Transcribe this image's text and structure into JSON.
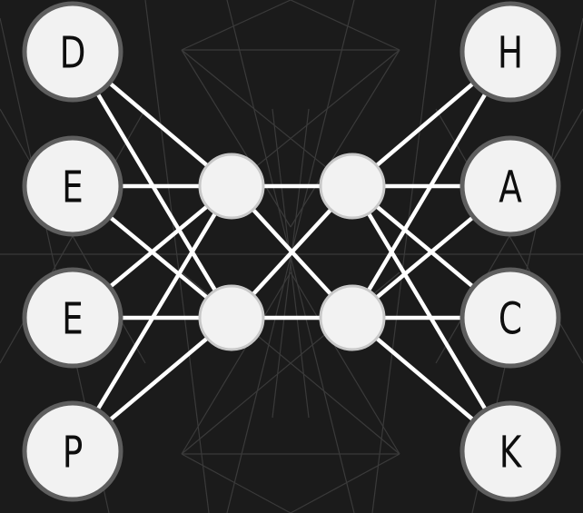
{
  "diagram": {
    "type": "neural-network",
    "colors": {
      "background": "#1b1b1b",
      "edge": "#ffffff",
      "node_fill": "#f2f2f2",
      "node_border": "#5e5e5e",
      "hidden_border": "#c8c8c8",
      "pattern": "#3a3a3a"
    },
    "input_nodes": [
      {
        "id": "in-0",
        "label": "D"
      },
      {
        "id": "in-1",
        "label": "E"
      },
      {
        "id": "in-2",
        "label": "E"
      },
      {
        "id": "in-3",
        "label": "P"
      }
    ],
    "hidden_layer_1": [
      {
        "id": "h1-0"
      },
      {
        "id": "h1-1"
      }
    ],
    "hidden_layer_2": [
      {
        "id": "h2-0"
      },
      {
        "id": "h2-1"
      }
    ],
    "output_nodes": [
      {
        "id": "out-0",
        "label": "H"
      },
      {
        "id": "out-1",
        "label": "A"
      },
      {
        "id": "out-2",
        "label": "C"
      },
      {
        "id": "out-3",
        "label": "K"
      }
    ],
    "edges": [
      [
        "in-0",
        "h1-0"
      ],
      [
        "in-0",
        "h1-1"
      ],
      [
        "in-1",
        "h1-0"
      ],
      [
        "in-1",
        "h1-1"
      ],
      [
        "in-2",
        "h1-0"
      ],
      [
        "in-2",
        "h1-1"
      ],
      [
        "in-3",
        "h1-0"
      ],
      [
        "in-3",
        "h1-1"
      ],
      [
        "h1-0",
        "h2-0"
      ],
      [
        "h1-0",
        "h2-1"
      ],
      [
        "h1-1",
        "h2-0"
      ],
      [
        "h1-1",
        "h2-1"
      ],
      [
        "h2-0",
        "out-0"
      ],
      [
        "h2-0",
        "out-1"
      ],
      [
        "h2-0",
        "out-2"
      ],
      [
        "h2-0",
        "out-3"
      ],
      [
        "h2-1",
        "out-0"
      ],
      [
        "h2-1",
        "out-1"
      ],
      [
        "h2-1",
        "out-2"
      ],
      [
        "h2-1",
        "out-3"
      ]
    ]
  }
}
